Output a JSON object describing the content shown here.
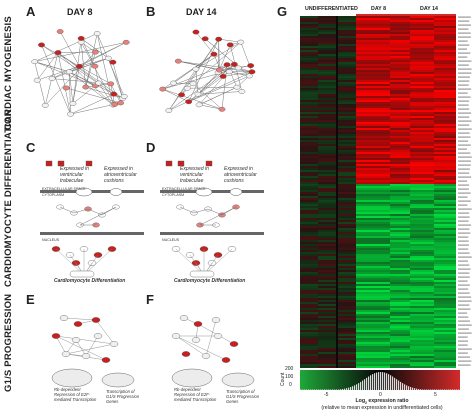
{
  "figure": {
    "panels": {
      "A": {
        "letter": "A",
        "day": "DAY 8"
      },
      "B": {
        "letter": "B",
        "day": "DAY 14"
      },
      "C": {
        "letter": "C"
      },
      "D": {
        "letter": "D"
      },
      "E": {
        "letter": "E"
      },
      "F": {
        "letter": "F"
      },
      "G": {
        "letter": "G"
      }
    },
    "row_labels": {
      "myogenesis": "CARDIAC MYOGENESIS",
      "differentiation": "CARDIOMYOCYTE DIFFERENTIATION",
      "progression": "G1/S PROGRESSION"
    },
    "pathway": {
      "expressed_ventricular": "Expressed in ventricular trabeculae",
      "expressed_atrioventricular": "Expressed in atrioventricular cushions",
      "extracellular": "EXTRACELLULAR SPACE",
      "cytoplasm": "CYTOPLASM",
      "nucleus": "NUCLEUS",
      "outcome": "Cardiomyocyte Differentiation"
    },
    "cellcycle": {
      "repression": "Rb-dependent Repression of E2F-mediated Transcription",
      "transcription": "Transcription of G1/S Progression Genes"
    },
    "heatmap": {
      "columns": [
        "UNDIFFERENTIATED",
        "DAY 8",
        "DAY 14"
      ],
      "colorbar": {
        "count_label": "Count",
        "count_ticks": [
          "200",
          "100",
          "0"
        ],
        "ticks": [
          "-5",
          "0",
          "5"
        ],
        "title_line1": "Log",
        "title_sub": "2",
        "title_line1_rest": " expression ratio",
        "title_line2": "(relative to mean expression in undifferentiated cells)"
      }
    },
    "colors": {
      "up_red": "#d42a2a",
      "down_green": "#1fa83a",
      "neutral": "#0a0a0a"
    }
  }
}
